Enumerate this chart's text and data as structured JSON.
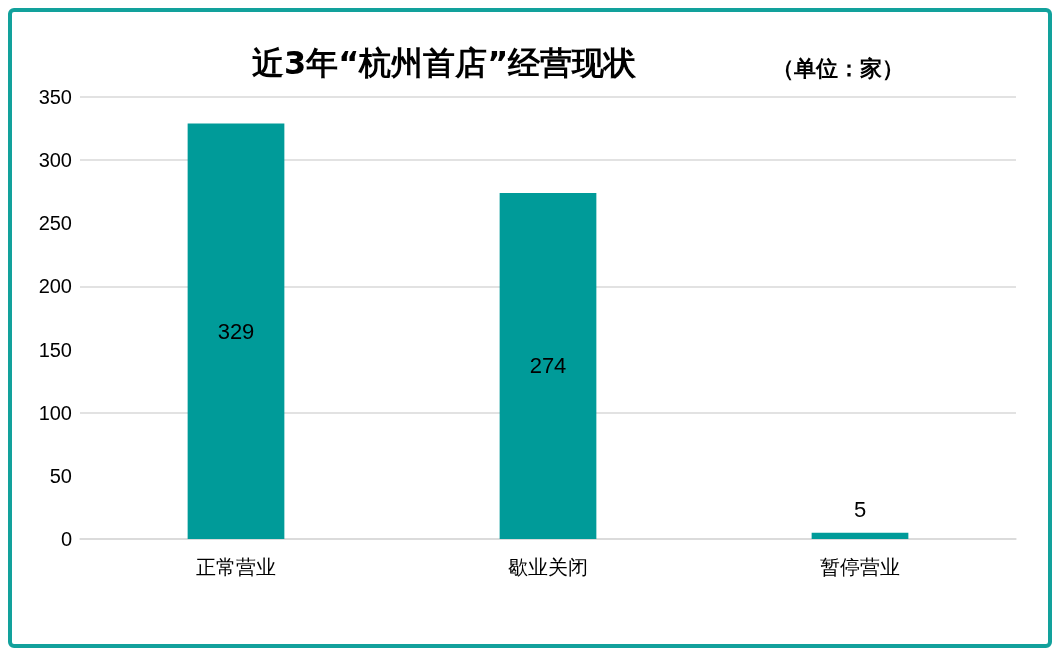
{
  "chart_data": {
    "type": "bar",
    "title": "近3年“杭州首店”经营现状",
    "subtitle": "（单位：家）",
    "categories": [
      "正常营业",
      "歇业关闭",
      "暂停营业"
    ],
    "values": [
      329,
      274,
      5
    ],
    "color": "#009b99",
    "ylim": [
      0,
      350
    ],
    "yticks": [
      0,
      50,
      100,
      150,
      200,
      250,
      300,
      350
    ],
    "grid": "y",
    "data_labels": true
  }
}
